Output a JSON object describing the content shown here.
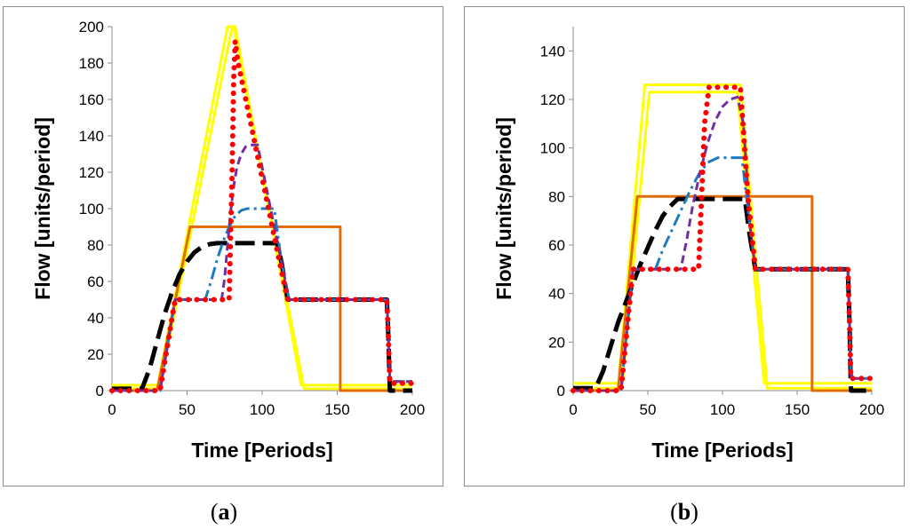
{
  "captions": [
    {
      "open": "(",
      "letter": "a",
      "close": ")"
    },
    {
      "open": "(",
      "letter": "b",
      "close": ")"
    }
  ],
  "colors": {
    "yellow": "#ffff00",
    "orange": "#e36c0a",
    "black": "#000000",
    "blue": "#1f7bc0",
    "purple": "#7030a0",
    "red": "#ff0000",
    "axis": "#8c8c8c"
  },
  "chart_data": [
    {
      "type": "line",
      "panel": "a",
      "xlabel": "Time [Periods]",
      "ylabel": "Flow [units/period]",
      "xlim": [
        0,
        200
      ],
      "ylim": [
        0,
        200
      ],
      "xticks": [
        0,
        50,
        100,
        150,
        200
      ],
      "yticks": [
        0,
        20,
        40,
        60,
        80,
        100,
        120,
        140,
        160,
        180,
        200
      ],
      "series": [
        {
          "name": "yellow-outer",
          "color": "#ffff00",
          "style": "solid",
          "width": 3,
          "x": [
            0,
            30,
            77,
            81,
            128,
            200
          ],
          "y": [
            1,
            1,
            200,
            200,
            1,
            1
          ]
        },
        {
          "name": "yellow-inner",
          "color": "#ffff00",
          "style": "solid",
          "width": 3,
          "x": [
            0,
            32,
            80,
            82,
            126,
            200
          ],
          "y": [
            3,
            3,
            200,
            200,
            3,
            3
          ]
        },
        {
          "name": "orange",
          "color": "#e36c0a",
          "style": "solid",
          "width": 3,
          "x": [
            0,
            30,
            52,
            152,
            152,
            200
          ],
          "y": [
            0,
            0,
            90,
            90,
            0,
            0
          ]
        },
        {
          "name": "black-dashed",
          "color": "#000000",
          "style": "longdash",
          "width": 5,
          "x": [
            0,
            20,
            25,
            30,
            35,
            40,
            45,
            50,
            55,
            60,
            65,
            70,
            110,
            113,
            117,
            183,
            184,
            185,
            200
          ],
          "y": [
            1,
            1,
            12,
            27,
            42,
            54,
            64,
            71,
            76,
            79,
            80.5,
            81,
            81,
            70,
            50,
            50,
            30,
            0,
            0
          ]
        },
        {
          "name": "blue-dashdot",
          "color": "#1f7bc0",
          "style": "dashdot",
          "width": 3,
          "x": [
            0,
            32,
            42,
            62,
            66,
            70,
            74,
            78,
            82,
            86,
            90,
            108,
            113,
            118,
            183,
            184,
            185,
            200
          ],
          "y": [
            0,
            0,
            50,
            50,
            60,
            72,
            82,
            90,
            96,
            99,
            100,
            100,
            70,
            50,
            50,
            30,
            5,
            5
          ]
        },
        {
          "name": "purple-dashed",
          "color": "#7030a0",
          "style": "dash",
          "width": 3,
          "x": [
            0,
            32,
            42,
            73,
            75,
            77,
            79,
            81,
            83,
            86,
            89,
            92,
            97,
            113,
            118,
            183,
            184,
            185,
            200
          ],
          "y": [
            0,
            0,
            50,
            50,
            62,
            80,
            98,
            112,
            122,
            130,
            134,
            135,
            135,
            70,
            50,
            50,
            30,
            5,
            5
          ]
        },
        {
          "name": "red-dotted",
          "color": "#ff0000",
          "style": "dotted",
          "width": 6,
          "x": [
            0,
            32,
            42,
            64,
            78,
            80,
            81,
            82,
            84,
            113,
            117,
            183,
            184,
            185,
            200
          ],
          "y": [
            0,
            0,
            50,
            50,
            50,
            120,
            170,
            192,
            180,
            65,
            50,
            50,
            30,
            4,
            4
          ]
        }
      ]
    },
    {
      "type": "line",
      "panel": "b",
      "xlabel": "Time [Periods]",
      "ylabel": "Flow [units/period]",
      "xlim": [
        0,
        200
      ],
      "ylim": [
        0,
        150
      ],
      "xticks": [
        0,
        50,
        100,
        150,
        200
      ],
      "yticks": [
        0,
        20,
        40,
        60,
        80,
        100,
        120,
        140
      ],
      "series": [
        {
          "name": "yellow-outer",
          "color": "#ffff00",
          "style": "solid",
          "width": 3,
          "x": [
            0,
            30,
            48,
            112,
            130,
            200
          ],
          "y": [
            1,
            1,
            126,
            126,
            1,
            1
          ]
        },
        {
          "name": "yellow-inner",
          "color": "#ffff00",
          "style": "solid",
          "width": 3,
          "x": [
            0,
            33,
            51,
            110,
            128,
            200
          ],
          "y": [
            3,
            3,
            123,
            123,
            3,
            3
          ]
        },
        {
          "name": "orange",
          "color": "#e36c0a",
          "style": "solid",
          "width": 3,
          "x": [
            0,
            30,
            43,
            160,
            160,
            200
          ],
          "y": [
            0,
            0,
            80,
            80,
            0,
            0
          ]
        },
        {
          "name": "black-dashed",
          "color": "#000000",
          "style": "longdash",
          "width": 5,
          "x": [
            0,
            15,
            20,
            25,
            30,
            35,
            40,
            45,
            50,
            55,
            60,
            65,
            70,
            115,
            118,
            122,
            184,
            185,
            186,
            200
          ],
          "y": [
            1,
            1,
            8,
            18,
            28,
            36,
            44,
            52,
            59,
            66,
            72,
            76,
            79,
            79,
            65,
            50,
            50,
            30,
            0,
            0
          ]
        },
        {
          "name": "blue-dashdot",
          "color": "#1f7bc0",
          "style": "dashdot",
          "width": 3,
          "x": [
            0,
            32,
            40,
            55,
            60,
            66,
            72,
            78,
            84,
            90,
            97,
            113,
            118,
            122,
            184,
            185,
            186,
            200
          ],
          "y": [
            0,
            0,
            50,
            50,
            58,
            66,
            74,
            82,
            89,
            94,
            96,
            96,
            70,
            50,
            50,
            30,
            5,
            5
          ]
        },
        {
          "name": "purple-dashed",
          "color": "#7030a0",
          "style": "dash",
          "width": 3,
          "x": [
            0,
            32,
            40,
            72,
            76,
            80,
            85,
            90,
            95,
            100,
            105,
            110,
            114,
            119,
            122,
            184,
            185,
            186,
            200
          ],
          "y": [
            0,
            0,
            50,
            50,
            62,
            76,
            90,
            102,
            111,
            117,
            120,
            121,
            110,
            65,
            50,
            50,
            30,
            5,
            5
          ]
        },
        {
          "name": "red-dotted",
          "color": "#ff0000",
          "style": "dotted",
          "width": 6,
          "x": [
            0,
            32,
            40,
            78,
            84,
            86,
            88,
            91,
            112,
            117,
            122,
            184,
            185,
            186,
            200
          ],
          "y": [
            0,
            0,
            50,
            50,
            50,
            80,
            110,
            125,
            125,
            80,
            50,
            50,
            30,
            5,
            5
          ]
        }
      ]
    }
  ]
}
